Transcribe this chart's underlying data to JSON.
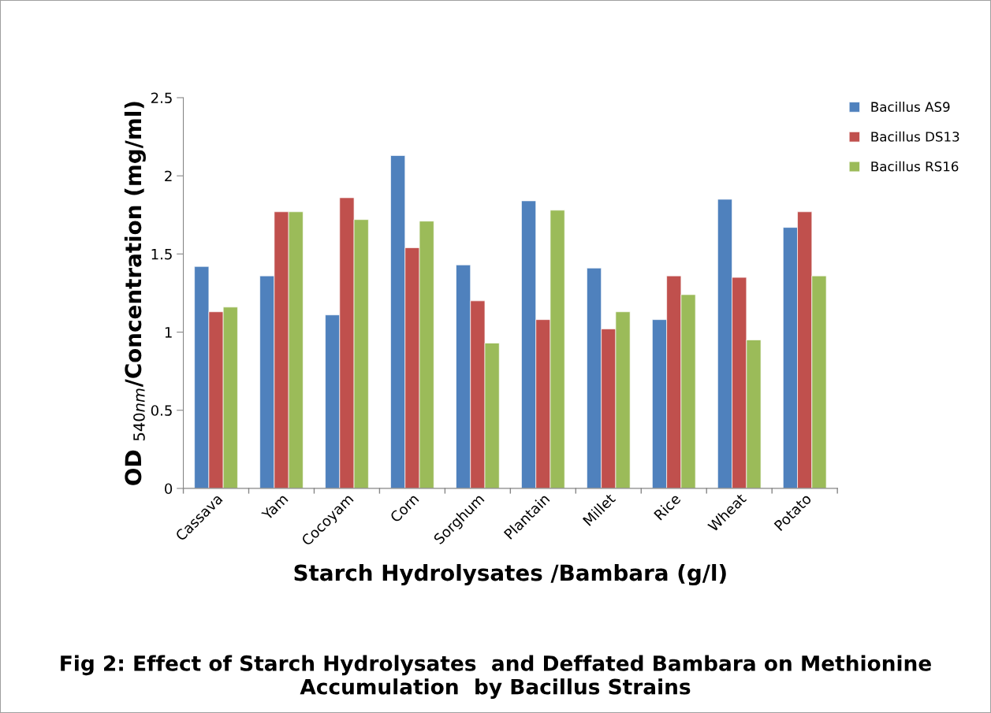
{
  "chart_data": {
    "type": "bar",
    "title": "Fig 2: Effect of Starch Hydrolysates  and Deffated Bambara on Methionine Accumulation  by Bacillus Strains",
    "xlabel": "Starch Hydrolysates /Bambara (g/l)",
    "ylabel": "OD $_{540nm}$/Concentration (mg/ml)",
    "categories": [
      "Cassava",
      "Yam",
      "Cocoyam",
      "Corn",
      "Sorghum",
      "Plantain",
      "Millet",
      "Rice",
      "Wheat",
      "Potato"
    ],
    "series": [
      {
        "name": "Bacillus AS9",
        "color": "#4f81bd",
        "values": [
          1.42,
          1.36,
          1.11,
          2.13,
          1.43,
          1.84,
          1.41,
          1.08,
          1.85,
          1.67
        ]
      },
      {
        "name": "Bacillus DS13",
        "color": "#c0504d",
        "values": [
          1.13,
          1.77,
          1.86,
          1.54,
          1.2,
          1.08,
          1.02,
          1.36,
          1.35,
          1.77
        ]
      },
      {
        "name": "Bacillus RS16",
        "color": "#9bbb59",
        "values": [
          1.16,
          1.77,
          1.72,
          1.71,
          0.93,
          1.78,
          1.13,
          1.24,
          0.95,
          1.36
        ]
      }
    ],
    "ylim": [
      0,
      2.5
    ],
    "yticks": [
      0,
      0.5,
      1,
      1.5,
      2,
      2.5
    ],
    "grid": false,
    "legend": "top right"
  }
}
